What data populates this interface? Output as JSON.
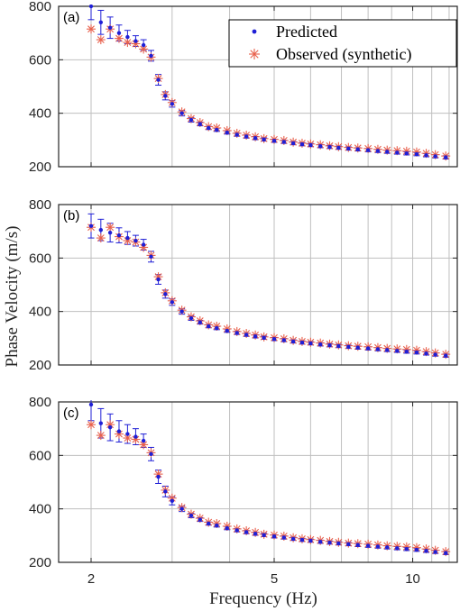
{
  "chart_data": {
    "type": "scatter",
    "xlabel": "Frequency (Hz)",
    "ylabel": "Phase Velocity (m/s)",
    "xscale": "log",
    "xlim": [
      1.7,
      12.5
    ],
    "ylim": [
      200,
      800
    ],
    "xticks": [
      2,
      5,
      10
    ],
    "yticks": [
      200,
      400,
      600,
      800
    ],
    "grid": true,
    "legend_position": "top-right (panel a)",
    "colors": {
      "predicted": "#1f1fd6",
      "observed": "#e8604c",
      "grid": "#bfbfbf"
    },
    "series_names": [
      "Predicted",
      "Observed (synthetic)"
    ],
    "x": [
      2.0,
      2.1,
      2.2,
      2.3,
      2.4,
      2.5,
      2.6,
      2.7,
      2.8,
      2.9,
      3.0,
      3.15,
      3.3,
      3.45,
      3.6,
      3.75,
      3.95,
      4.15,
      4.35,
      4.55,
      4.75,
      5.0,
      5.25,
      5.5,
      5.75,
      6.0,
      6.3,
      6.6,
      6.9,
      7.25,
      7.6,
      8.0,
      8.4,
      8.8,
      9.25,
      9.7,
      10.2,
      10.7,
      11.2,
      11.8
    ],
    "observed": [
      715,
      675,
      715,
      680,
      665,
      660,
      640,
      610,
      530,
      470,
      440,
      405,
      380,
      365,
      350,
      345,
      335,
      325,
      318,
      312,
      305,
      302,
      298,
      292,
      288,
      285,
      282,
      278,
      275,
      272,
      270,
      268,
      265,
      262,
      260,
      258,
      255,
      250,
      245,
      240
    ],
    "panels": [
      {
        "label": "(a)",
        "predicted": [
          800,
          740,
          720,
          700,
          685,
          670,
          655,
          615,
          525,
          465,
          435,
          400,
          375,
          360,
          345,
          338,
          328,
          320,
          313,
          307,
          302,
          297,
          293,
          288,
          284,
          281,
          277,
          274,
          271,
          268,
          265,
          262,
          259,
          256,
          253,
          250,
          247,
          243,
          239,
          235
        ],
        "error": [
          50,
          45,
          40,
          30,
          25,
          20,
          20,
          20,
          20,
          15,
          12,
          10,
          8,
          7,
          6,
          6,
          6,
          6,
          6,
          6,
          6,
          6,
          6,
          6,
          6,
          6,
          6,
          6,
          6,
          6,
          6,
          6,
          6,
          6,
          6,
          6,
          6,
          6,
          6,
          6
        ]
      },
      {
        "label": "(b)",
        "predicted": [
          720,
          705,
          695,
          685,
          675,
          665,
          650,
          605,
          520,
          465,
          435,
          400,
          375,
          360,
          345,
          338,
          328,
          320,
          313,
          307,
          302,
          297,
          293,
          288,
          284,
          281,
          277,
          274,
          271,
          268,
          265,
          262,
          259,
          256,
          253,
          250,
          247,
          243,
          239,
          235
        ],
        "error": [
          45,
          40,
          35,
          28,
          24,
          20,
          20,
          20,
          18,
          15,
          12,
          10,
          8,
          7,
          6,
          6,
          6,
          6,
          6,
          6,
          6,
          6,
          6,
          6,
          6,
          6,
          6,
          6,
          6,
          6,
          6,
          6,
          6,
          6,
          6,
          6,
          6,
          6,
          6,
          6
        ]
      },
      {
        "label": "(c)",
        "predicted": [
          790,
          720,
          705,
          690,
          680,
          670,
          655,
          605,
          520,
          465,
          430,
          400,
          375,
          360,
          345,
          338,
          328,
          320,
          313,
          307,
          302,
          297,
          293,
          288,
          284,
          281,
          277,
          274,
          271,
          268,
          265,
          262,
          259,
          256,
          253,
          250,
          247,
          243,
          239,
          235
        ],
        "error": [
          60,
          55,
          50,
          40,
          35,
          30,
          25,
          25,
          25,
          20,
          15,
          10,
          8,
          7,
          6,
          6,
          6,
          6,
          6,
          6,
          6,
          6,
          6,
          6,
          6,
          6,
          6,
          6,
          6,
          6,
          6,
          6,
          6,
          6,
          6,
          6,
          6,
          6,
          6,
          6
        ]
      }
    ]
  }
}
